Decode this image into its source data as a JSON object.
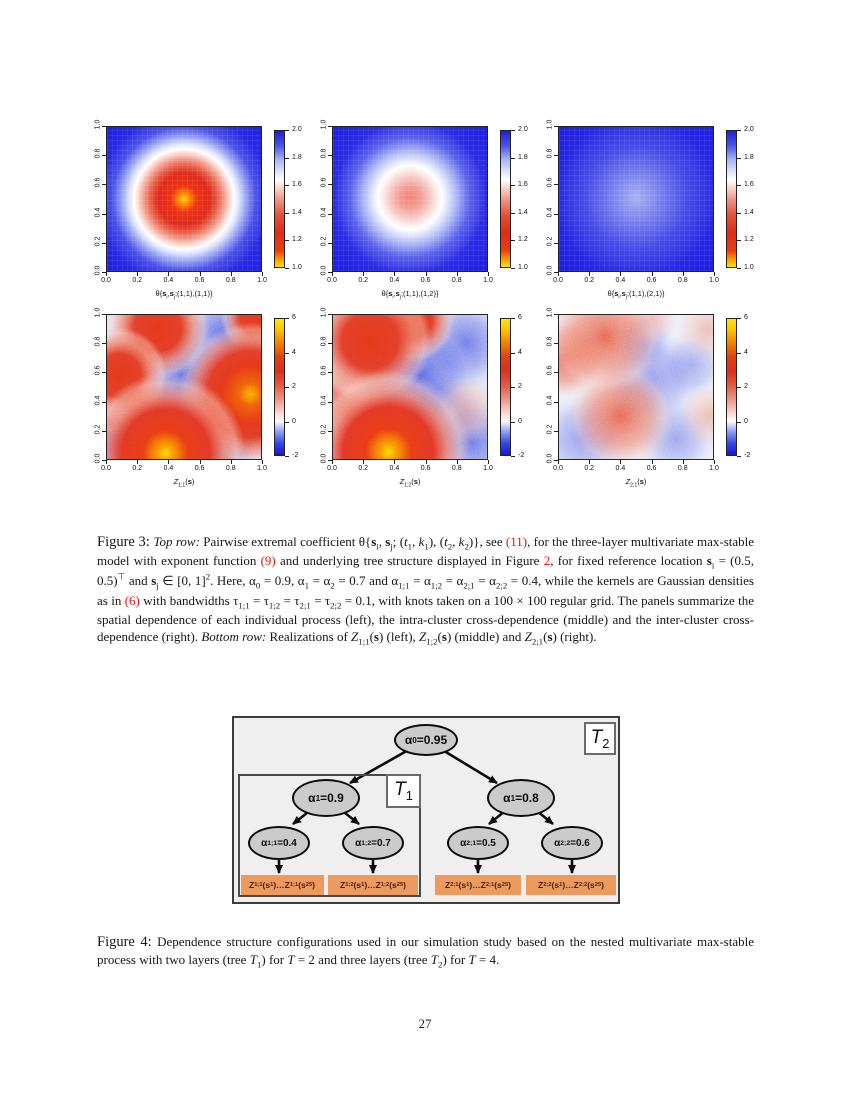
{
  "page": {
    "number": "27"
  },
  "colors": {
    "field_blue": "#1b1be0",
    "link_red": "#e21313",
    "node_fill": "#cbcbcb",
    "leaf_fill": "#ec9a5e",
    "tree_bg": "#efefef",
    "colorbar_top_stops": [
      [
        0,
        "#ffe100"
      ],
      [
        5,
        "#ffa300"
      ],
      [
        12,
        "#f03c0e"
      ],
      [
        25,
        "#e02a1a"
      ],
      [
        38,
        "#e6503a"
      ],
      [
        50,
        "#f0998a"
      ],
      [
        59,
        "#fbdad3"
      ],
      [
        64,
        "#ffffff"
      ],
      [
        70,
        "#dfe4fb"
      ],
      [
        79,
        "#a8b3f5"
      ],
      [
        89,
        "#4c55e8"
      ],
      [
        100,
        "#1f1fd8"
      ]
    ],
    "colorbar_bottom_stops": [
      [
        0,
        "#1515cc"
      ],
      [
        9,
        "#3a4ae8"
      ],
      [
        17,
        "#8c9cf4"
      ],
      [
        25,
        "#fdfdfd"
      ],
      [
        33,
        "#f6c9c0"
      ],
      [
        42,
        "#ee8e80"
      ],
      [
        52,
        "#e4553d"
      ],
      [
        62,
        "#dd2f1b"
      ],
      [
        72,
        "#e24110"
      ],
      [
        82,
        "#f08000"
      ],
      [
        92,
        "#fcc400"
      ],
      [
        100,
        "#ffe800"
      ]
    ]
  },
  "chart_data": [
    {
      "type": "heatmap",
      "row": "top",
      "xlabel": "θ{*{s}_{i},*{s}_{j};(1,1),(1,1)}",
      "x_range": [
        0,
        1
      ],
      "y_range": [
        0,
        1
      ],
      "x_tick_labels": [
        "0.0",
        "0.2",
        "0.4",
        "0.6",
        "0.8",
        "1.0"
      ],
      "y_tick_labels": [
        "0.0",
        "0.2",
        "0.4",
        "0.6",
        "0.8",
        "1.0"
      ],
      "colorbar": {
        "min": 1,
        "max": 2,
        "tick_values": [
          1,
          1.2,
          1.4,
          1.6,
          1.8,
          2
        ],
        "tick_labels": [
          "1.0",
          "1.2",
          "1.4",
          "1.6",
          "1.8",
          "2.0"
        ]
      },
      "bull": {
        "x": 50,
        "y": 50,
        "intensity": "strong"
      },
      "description": "Blue field with strong red bullseye (value near 1, yellow core) centered at reference location (0.5,0.5); values rise to 2 away from center."
    },
    {
      "type": "heatmap",
      "row": "top",
      "xlabel": "θ{*{s}_{i},*{s}_{j};(1,1),(1,2)}",
      "x_range": [
        0,
        1
      ],
      "y_range": [
        0,
        1
      ],
      "x_tick_labels": [
        "0.0",
        "0.2",
        "0.4",
        "0.6",
        "0.8",
        "1.0"
      ],
      "y_tick_labels": [
        "0.0",
        "0.2",
        "0.4",
        "0.6",
        "0.8",
        "1.0"
      ],
      "colorbar": {
        "min": 1,
        "max": 2,
        "tick_values": [
          1,
          1.2,
          1.4,
          1.6,
          1.8,
          2
        ],
        "tick_labels": [
          "1.0",
          "1.2",
          "1.4",
          "1.6",
          "1.8",
          "2.0"
        ]
      },
      "bull": {
        "x": 50,
        "y": 49,
        "intensity": "moderate"
      },
      "description": "Blue field with moderate pink/white blob at (0.5,0.5): intra-cluster cross-dependence."
    },
    {
      "type": "heatmap",
      "row": "top",
      "xlabel": "θ{*{s}_{i},*{s}_{j};(1,1),(2,1)}",
      "x_range": [
        0,
        1
      ],
      "y_range": [
        0,
        1
      ],
      "x_tick_labels": [
        "0.0",
        "0.2",
        "0.4",
        "0.6",
        "0.8",
        "1.0"
      ],
      "y_tick_labels": [
        "0.0",
        "0.2",
        "0.4",
        "0.6",
        "0.8",
        "1.0"
      ],
      "colorbar": {
        "min": 1,
        "max": 2,
        "tick_values": [
          1,
          1.2,
          1.4,
          1.6,
          1.8,
          2
        ],
        "tick_labels": [
          "1.0",
          "1.2",
          "1.4",
          "1.6",
          "1.8",
          "2.0"
        ]
      },
      "bull": {
        "x": 50,
        "y": 49,
        "intensity": "weak"
      },
      "description": "Nearly uniform blue field with faint lighter halo at center: weak inter-cluster cross-dependence (values close to 2)."
    },
    {
      "type": "heatmap",
      "row": "bottom",
      "xlabel": "i{Z}_{1;1}(*{s})",
      "x_range": [
        0,
        1
      ],
      "y_range": [
        0,
        1
      ],
      "x_tick_labels": [
        "0.0",
        "0.2",
        "0.4",
        "0.6",
        "0.8",
        "1.0"
      ],
      "y_tick_labels": [
        "0.0",
        "0.2",
        "0.4",
        "0.6",
        "0.8",
        "1.0"
      ],
      "colorbar": {
        "min": -2,
        "max": 6,
        "tick_values": [
          -2,
          0,
          2,
          4,
          6
        ],
        "tick_labels": [
          "-2",
          "0",
          "2",
          "4",
          "6"
        ]
      },
      "blobs": [
        {
          "x": 38,
          "y": 96,
          "r": 80,
          "peak": 6
        },
        {
          "x": 93,
          "y": 55,
          "r": 72,
          "peak": 5
        },
        {
          "x": 8,
          "y": 42,
          "r": 48,
          "peak": 4
        },
        {
          "x": 33,
          "y": 9,
          "r": 52,
          "peak": 4
        },
        {
          "x": 96,
          "y": 2,
          "r": 34,
          "peak": 4
        },
        {
          "x": 2,
          "y": 72,
          "r": 14,
          "peak": 3
        }
      ],
      "cool": [
        {
          "x": 52,
          "y": 46,
          "r": 55,
          "a": 0.85
        },
        {
          "x": 5,
          "y": 90,
          "r": 40,
          "a": 0.8
        },
        {
          "x": 72,
          "y": 90,
          "r": 46,
          "a": 0.75
        },
        {
          "x": 75,
          "y": 14,
          "r": 40,
          "a": 0.8
        },
        {
          "x": 100,
          "y": 30,
          "r": 28,
          "a": 0.6
        }
      ],
      "base": "#e2e6f5",
      "description": "Noisy realization with hot (red/yellow, up to 6) patches bottom-center, right-middle, left and top, separated by cold blue (down to -2) regions."
    },
    {
      "type": "heatmap",
      "row": "bottom",
      "xlabel": "i{Z}_{1;2}(*{s})",
      "x_range": [
        0,
        1
      ],
      "y_range": [
        0,
        1
      ],
      "x_tick_labels": [
        "0.0",
        "0.2",
        "0.4",
        "0.6",
        "0.8",
        "1.0"
      ],
      "y_tick_labels": [
        "0.0",
        "0.2",
        "0.4",
        "0.6",
        "0.8",
        "1.0"
      ],
      "colorbar": {
        "min": -2,
        "max": 6,
        "tick_values": [
          -2,
          0,
          2,
          4,
          6
        ],
        "tick_labels": [
          "-2",
          "0",
          "2",
          "4",
          "6"
        ]
      },
      "blobs": [
        {
          "x": 36,
          "y": 95,
          "r": 82,
          "peak": 6
        },
        {
          "x": 24,
          "y": 18,
          "r": 62,
          "peak": 4
        },
        {
          "x": 52,
          "y": 3,
          "r": 42,
          "peak": 4
        },
        {
          "x": 2,
          "y": 57,
          "r": 30,
          "peak": 3
        },
        {
          "x": 86,
          "y": 66,
          "r": 34,
          "peak": 2
        }
      ],
      "cool": [
        {
          "x": 56,
          "y": 42,
          "r": 60,
          "a": 0.8
        },
        {
          "x": 86,
          "y": 20,
          "r": 46,
          "a": 0.7
        },
        {
          "x": 90,
          "y": 88,
          "r": 46,
          "a": 0.7
        },
        {
          "x": 70,
          "y": 68,
          "r": 40,
          "a": 0.6
        }
      ],
      "base": "#e2e6f5",
      "description": "Noisy realization similar to left panel: hot patch bottom-center, red blobs top-left and top-center, broad blue band through middle-right."
    },
    {
      "type": "heatmap",
      "row": "bottom",
      "xlabel": "i{Z}_{2;1}(*{s})",
      "x_range": [
        0,
        1
      ],
      "y_range": [
        0,
        1
      ],
      "x_tick_labels": [
        "0.0",
        "0.2",
        "0.4",
        "0.6",
        "0.8",
        "1.0"
      ],
      "y_tick_labels": [
        "0.0",
        "0.2",
        "0.4",
        "0.6",
        "0.8",
        "1.0"
      ],
      "colorbar": {
        "min": -2,
        "max": 6,
        "tick_values": [
          -2,
          0,
          2,
          4,
          6
        ],
        "tick_labels": [
          "-2",
          "0",
          "2",
          "4",
          "6"
        ]
      },
      "blobs": [
        {
          "x": 30,
          "y": 15,
          "r": 56,
          "peak": 3
        },
        {
          "x": 4,
          "y": 30,
          "r": 40,
          "peak": 3
        },
        {
          "x": 40,
          "y": 70,
          "r": 52,
          "peak": 3
        },
        {
          "x": 97,
          "y": 10,
          "r": 30,
          "peak": 2
        },
        {
          "x": 98,
          "y": 70,
          "r": 30,
          "peak": 2
        },
        {
          "x": 60,
          "y": 2,
          "r": 26,
          "peak": 2
        }
      ],
      "cool": [
        {
          "x": 15,
          "y": 86,
          "r": 45,
          "a": 0.5
        },
        {
          "x": 60,
          "y": 45,
          "r": 50,
          "a": 0.5
        },
        {
          "x": 76,
          "y": 86,
          "r": 40,
          "a": 0.45
        },
        {
          "x": 55,
          "y": 18,
          "r": 30,
          "a": 0.45
        },
        {
          "x": 86,
          "y": 35,
          "r": 34,
          "a": 0.4
        }
      ],
      "base": "#eceef8",
      "description": "Washed-out realization from the other cluster: pale red patches top-left, left, bottom-center and right edge over light blue background."
    }
  ],
  "figure3": {
    "caption": {
      "label": "Figure 3:",
      "segments": [
        {
          "t": "Top row:",
          "s": "it"
        },
        {
          "t": " Pairwise extremal coefficient θ{*{s}_{i}, *{s}_{j}; (i{t}_{1}, i{k}_{1}), (i{t}_{2}, i{k}_{2})}, see ",
          "s": ""
        },
        {
          "t": "(11)",
          "s": "ref"
        },
        {
          "t": ", for the three-layer multivariate max-stable model with exponent function ",
          "s": ""
        },
        {
          "t": "(9)",
          "s": "ref"
        },
        {
          "t": " and underlying tree structure displayed in Figure ",
          "s": ""
        },
        {
          "t": "2",
          "s": "ref"
        },
        {
          "t": ", for fixed reference location *{s}_{i} = (0.5, 0.5)^{⊤} and *{s}_{j} ∈ [0, 1]^{2}. Here, α_{0} = 0.9, α_{1} = α_{2} = 0.7 and α_{1;1} = α_{1;2} = α_{2;1} = α_{2;2} = 0.4, while the kernels are Gaussian densities as in ",
          "s": ""
        },
        {
          "t": "(6)",
          "s": "ref"
        },
        {
          "t": " with bandwidths τ_{1;1} = τ_{1;2} = τ_{2;1} = τ_{2;2} = 0.1, with knots taken on a 100 × 100 regular grid. The panels summarize the spatial dependence of each individual process (left), the intra-cluster cross-dependence (middle) and the inter-cluster cross-dependence (right). ",
          "s": ""
        },
        {
          "t": "Bottom row:",
          "s": "it"
        },
        {
          "t": " Realizations of i{Z}_{1;1}(*{s}) (left), i{Z}_{1;2}(*{s}) (middle) and i{Z}_{2;1}(*{s}) (right).",
          "s": ""
        }
      ]
    }
  },
  "figure4": {
    "tree": {
      "outer_label": "i{T}_{2}",
      "inner_label": "i{T}_{1}",
      "root": "α_{0}=0.95",
      "level1": [
        "α_{1}=0.9",
        "α_{1}=0.8"
      ],
      "level2": [
        "α_{1;1}=0.4",
        "α_{1;2}=0.7",
        "α_{2;1}=0.5",
        "α_{2;2}=0.6"
      ],
      "leaves": [
        "Z_{1;1}(s_{1})…Z_{1;1}(s_{25})",
        "Z_{1;2}(s_{1})…Z_{1;2}(s_{25})",
        "Z_{2;1}(s_{1})…Z_{2;1}(s_{25})",
        "Z_{2;2}(s_{1})…Z_{2;2}(s_{25})"
      ]
    },
    "caption": {
      "label": "Figure 4:",
      "segments": [
        {
          "t": "Dependence structure configurations used in our simulation study based on the nested multivariate max-stable process with two layers (tree i{T}_{1}) for i{T} = 2 and three layers (tree i{T}_{2}) for i{T} = 4.",
          "s": ""
        }
      ]
    }
  }
}
